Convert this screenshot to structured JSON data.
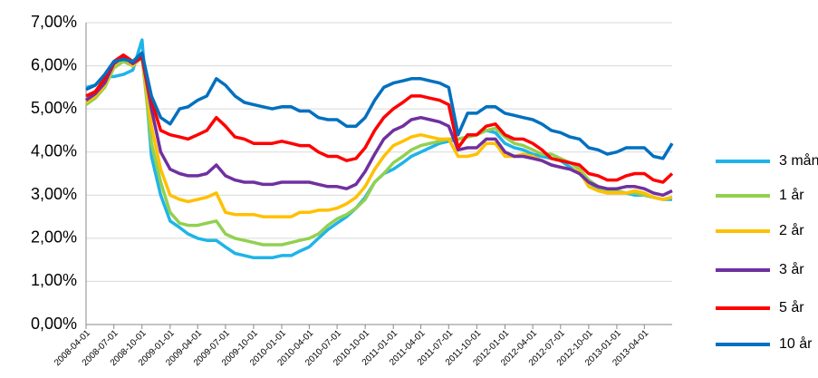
{
  "chart_data": {
    "type": "line",
    "x": [
      "2008-04-01",
      "2008-05-01",
      "2008-06-01",
      "2008-07-01",
      "2008-08-01",
      "2008-09-01",
      "2008-10-01",
      "2008-11-01",
      "2008-12-01",
      "2009-01-01",
      "2009-02-01",
      "2009-03-01",
      "2009-04-01",
      "2009-05-01",
      "2009-06-01",
      "2009-07-01",
      "2009-08-01",
      "2009-09-01",
      "2009-10-01",
      "2009-11-01",
      "2009-12-01",
      "2010-01-01",
      "2010-02-01",
      "2010-03-01",
      "2010-04-01",
      "2010-05-01",
      "2010-06-01",
      "2010-07-01",
      "2010-08-01",
      "2010-09-01",
      "2010-10-01",
      "2010-11-01",
      "2010-12-01",
      "2011-01-01",
      "2011-02-01",
      "2011-03-01",
      "2011-04-01",
      "2011-05-01",
      "2011-06-01",
      "2011-07-01",
      "2011-08-01",
      "2011-09-01",
      "2011-10-01",
      "2011-11-01",
      "2011-12-01",
      "2012-01-01",
      "2012-02-01",
      "2012-03-01",
      "2012-04-01",
      "2012-05-01",
      "2012-06-01",
      "2012-07-01",
      "2012-08-01",
      "2012-09-01",
      "2012-10-01",
      "2012-11-01",
      "2012-12-01",
      "2013-01-01",
      "2013-02-01",
      "2013-03-01",
      "2013-04-01",
      "2013-05-01",
      "2013-06-01",
      "2013-07-01"
    ],
    "series": [
      {
        "name": "3 mån",
        "color": "#1fb4e8",
        "values": [
          5.5,
          5.55,
          5.75,
          5.75,
          5.8,
          5.9,
          6.6,
          3.9,
          3.0,
          2.4,
          2.25,
          2.1,
          2.0,
          1.95,
          1.95,
          1.8,
          1.65,
          1.6,
          1.55,
          1.55,
          1.55,
          1.6,
          1.6,
          1.7,
          1.8,
          2.0,
          2.2,
          2.35,
          2.5,
          2.7,
          2.95,
          3.3,
          3.5,
          3.6,
          3.75,
          3.9,
          4.0,
          4.1,
          4.2,
          4.25,
          4.3,
          4.35,
          4.4,
          4.5,
          4.45,
          4.2,
          4.1,
          4.05,
          3.95,
          3.9,
          3.85,
          3.8,
          3.65,
          3.5,
          3.3,
          3.15,
          3.05,
          3.05,
          3.05,
          3.0,
          3.0,
          2.95,
          2.9,
          2.9
        ]
      },
      {
        "name": "1 år",
        "color": "#92d050",
        "values": [
          5.1,
          5.25,
          5.5,
          5.95,
          6.1,
          6.0,
          6.2,
          4.2,
          3.3,
          2.6,
          2.35,
          2.3,
          2.3,
          2.35,
          2.4,
          2.1,
          2.0,
          1.95,
          1.9,
          1.85,
          1.85,
          1.85,
          1.9,
          1.95,
          2.0,
          2.1,
          2.3,
          2.45,
          2.55,
          2.7,
          2.9,
          3.3,
          3.5,
          3.75,
          3.9,
          4.05,
          4.15,
          4.2,
          4.25,
          4.3,
          4.3,
          4.35,
          4.4,
          4.5,
          4.55,
          4.35,
          4.2,
          4.15,
          4.05,
          3.95,
          3.95,
          3.85,
          3.75,
          3.6,
          3.35,
          3.2,
          3.1,
          3.1,
          3.05,
          3.05,
          3.0,
          2.95,
          2.9,
          2.95
        ]
      },
      {
        "name": "2 år",
        "color": "#ffc000",
        "values": [
          5.15,
          5.3,
          5.55,
          6.0,
          6.2,
          6.0,
          6.2,
          4.6,
          3.6,
          3.0,
          2.9,
          2.85,
          2.9,
          2.95,
          3.05,
          2.6,
          2.55,
          2.55,
          2.55,
          2.5,
          2.5,
          2.5,
          2.5,
          2.6,
          2.6,
          2.65,
          2.65,
          2.7,
          2.8,
          2.95,
          3.2,
          3.6,
          3.9,
          4.15,
          4.25,
          4.35,
          4.4,
          4.35,
          4.3,
          4.3,
          3.9,
          3.9,
          3.95,
          4.2,
          4.2,
          3.9,
          3.9,
          3.95,
          3.9,
          3.8,
          3.7,
          3.65,
          3.6,
          3.55,
          3.2,
          3.1,
          3.05,
          3.05,
          3.05,
          3.1,
          3.05,
          2.95,
          2.9,
          2.95
        ]
      },
      {
        "name": "3 år",
        "color": "#7030a0",
        "values": [
          5.2,
          5.35,
          5.6,
          6.05,
          6.2,
          6.05,
          6.2,
          5.0,
          4.0,
          3.6,
          3.5,
          3.45,
          3.45,
          3.5,
          3.7,
          3.45,
          3.35,
          3.3,
          3.3,
          3.25,
          3.25,
          3.3,
          3.3,
          3.3,
          3.3,
          3.25,
          3.2,
          3.2,
          3.15,
          3.25,
          3.55,
          3.95,
          4.3,
          4.5,
          4.6,
          4.75,
          4.8,
          4.75,
          4.7,
          4.6,
          4.05,
          4.1,
          4.1,
          4.3,
          4.3,
          4.0,
          3.9,
          3.9,
          3.85,
          3.8,
          3.7,
          3.65,
          3.6,
          3.5,
          3.3,
          3.2,
          3.15,
          3.15,
          3.2,
          3.2,
          3.15,
          3.05,
          3.0,
          3.1
        ]
      },
      {
        "name": "5 år",
        "color": "#ff0000",
        "values": [
          5.3,
          5.4,
          5.7,
          6.1,
          6.25,
          6.1,
          6.2,
          5.2,
          4.5,
          4.4,
          4.35,
          4.3,
          4.4,
          4.5,
          4.8,
          4.6,
          4.35,
          4.3,
          4.2,
          4.2,
          4.2,
          4.25,
          4.2,
          4.15,
          4.15,
          4.0,
          3.9,
          3.9,
          3.8,
          3.85,
          4.1,
          4.5,
          4.8,
          5.0,
          5.15,
          5.3,
          5.3,
          5.25,
          5.2,
          5.1,
          4.1,
          4.4,
          4.4,
          4.6,
          4.65,
          4.4,
          4.3,
          4.3,
          4.2,
          4.05,
          3.85,
          3.8,
          3.75,
          3.7,
          3.5,
          3.45,
          3.35,
          3.35,
          3.45,
          3.5,
          3.5,
          3.35,
          3.3,
          3.5
        ]
      },
      {
        "name": "10 år",
        "color": "#0070c0",
        "values": [
          5.45,
          5.55,
          5.8,
          6.1,
          6.15,
          6.1,
          6.3,
          5.3,
          4.8,
          4.65,
          5.0,
          5.05,
          5.2,
          5.3,
          5.7,
          5.55,
          5.3,
          5.15,
          5.1,
          5.05,
          5.0,
          5.05,
          5.05,
          4.95,
          4.95,
          4.8,
          4.75,
          4.75,
          4.6,
          4.6,
          4.8,
          5.2,
          5.5,
          5.6,
          5.65,
          5.7,
          5.7,
          5.65,
          5.6,
          5.5,
          4.4,
          4.9,
          4.9,
          5.05,
          5.05,
          4.9,
          4.85,
          4.8,
          4.75,
          4.65,
          4.5,
          4.45,
          4.35,
          4.3,
          4.1,
          4.05,
          3.95,
          4.0,
          4.1,
          4.1,
          4.1,
          3.9,
          3.85,
          4.2
        ]
      }
    ],
    "xlim": [
      "2008-04-01",
      "2013-07-01"
    ],
    "xticks": [
      "2008-04-01",
      "2008-07-01",
      "2008-10-01",
      "2009-01-01",
      "2009-04-01",
      "2009-07-01",
      "2009-10-01",
      "2010-01-01",
      "2010-04-01",
      "2010-07-01",
      "2010-10-01",
      "2011-01-01",
      "2011-04-01",
      "2011-07-01",
      "2011-10-01",
      "2012-01-01",
      "2012-04-01",
      "2012-07-01",
      "2012-10-01",
      "2013-01-01",
      "2013-04-01"
    ],
    "ylim": [
      0,
      7
    ],
    "yticks": [
      {
        "value": 0,
        "label": "0,00%"
      },
      {
        "value": 1,
        "label": "1,00%"
      },
      {
        "value": 2,
        "label": "2,00%"
      },
      {
        "value": 3,
        "label": "3,00%"
      },
      {
        "value": 4,
        "label": "4,00%"
      },
      {
        "value": 5,
        "label": "5,00%"
      },
      {
        "value": 6,
        "label": "6,00%"
      },
      {
        "value": 7,
        "label": "7,00%"
      }
    ],
    "grid": true,
    "legend": "right"
  }
}
